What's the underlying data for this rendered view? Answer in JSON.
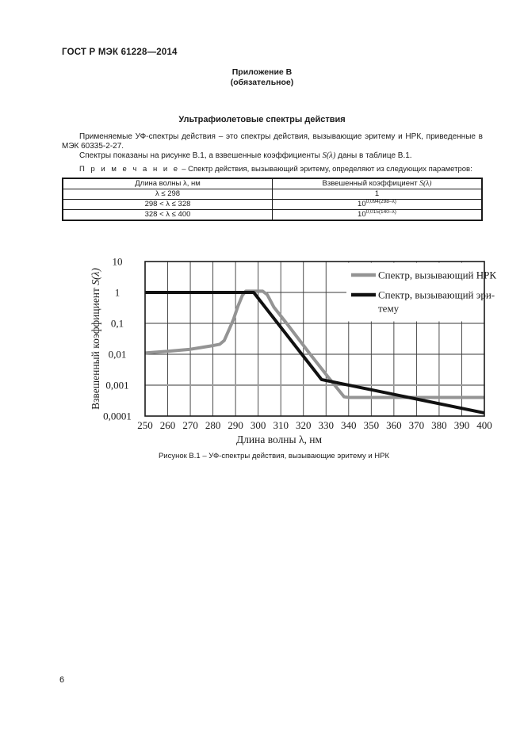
{
  "page": {
    "header": "ГОСТ Р МЭК 61228—2014",
    "annex_title": "Приложение В",
    "annex_subtitle": "(обязательное)",
    "section_title": "Ультрафиолетовые спектры действия",
    "paragraph_1": "Применяемые УФ-спектры действия – это спектры действия, вызывающие эритему и НРК, приведенные в МЭК 60335-2-27.",
    "paragraph_2": {
      "pre": "Спектры показаны на рисунке В.1, а взвешенные коэффициенты ",
      "math": "S(λ)",
      "post": " даны в таблице В.1."
    },
    "note": {
      "label": "П р и м е ч а н и е",
      "text": " – Спектр действия, вызывающий эритему, определяют из следующих параметров:"
    },
    "figure_caption": "Рисунок В.1 – УФ-спектры действия, вызывающие эритему и НРК",
    "page_number": "6"
  },
  "table": {
    "col1": "Длина волны λ, нм",
    "col2_pre": "Взвешенный коэффициент ",
    "col2_math": "S(λ)",
    "rows": [
      {
        "wavelength": "λ ≤ 298",
        "base": "1",
        "sup": ""
      },
      {
        "wavelength": "298 < λ ≤ 328",
        "base": "10",
        "sup": "0,094(298–λ)"
      },
      {
        "wavelength": "328 < λ ≤ 400",
        "base": "10",
        "sup": "0,015(140–λ)"
      }
    ]
  },
  "chart_data": {
    "type": "line",
    "title": "",
    "xlabel": "Длина волны λ, нм",
    "ylabel_pre": "Взвешенный коэффициент ",
    "ylabel_math": "S(λ)",
    "x_ticks": [
      250,
      260,
      270,
      280,
      290,
      300,
      310,
      320,
      330,
      340,
      350,
      360,
      370,
      380,
      390,
      400
    ],
    "xlim": [
      250,
      400
    ],
    "y_scale": "log",
    "ylim": [
      0.0001,
      10
    ],
    "y_tick_labels": [
      "10",
      "1",
      "0,1",
      "0,01",
      "0,001",
      "0,0001"
    ],
    "y_tick_values": [
      10,
      1,
      0.1,
      0.01,
      0.001,
      0.0001
    ],
    "grid": "on",
    "frame_color": "#1a1a1a",
    "grid_color": "#3a3a3a",
    "highlight_gridline": {
      "value": 0.001,
      "color": "#9a9a9a",
      "width": 2
    },
    "legend": {
      "position": "top-right-inside",
      "entries": [
        {
          "name": "Спектр, вызывающий НРК",
          "color": "#949494",
          "lines": [
            "Спектр, вызывающий НРК"
          ]
        },
        {
          "name": "Спектр, вызывающий эритему",
          "color": "#111111",
          "lines": [
            "Спектр, вызывающий эри-",
            "тему"
          ]
        }
      ]
    },
    "series": [
      {
        "name": "Спектр, вызывающий НРК",
        "color": "#949494",
        "width": 4,
        "points": [
          [
            250,
            0.011
          ],
          [
            260,
            0.0125
          ],
          [
            270,
            0.0145
          ],
          [
            280,
            0.019
          ],
          [
            283,
            0.021
          ],
          [
            285,
            0.028
          ],
          [
            287,
            0.06
          ],
          [
            289,
            0.13
          ],
          [
            291,
            0.35
          ],
          [
            293,
            0.8
          ],
          [
            294.5,
            1.1
          ],
          [
            302,
            1.1
          ],
          [
            304,
            0.85
          ],
          [
            307,
            0.33
          ],
          [
            312.6,
            0.1
          ],
          [
            323,
            0.01
          ],
          [
            331,
            0.0018
          ],
          [
            338,
            0.00042
          ],
          [
            340,
            0.0004
          ],
          [
            400,
            0.0004
          ]
        ]
      },
      {
        "name": "Спектр, вызывающий эритему",
        "color": "#111111",
        "width": 4,
        "points": [
          [
            250,
            1
          ],
          [
            298,
            1
          ],
          [
            328,
            0.00152
          ],
          [
            400,
            0.000126
          ]
        ]
      }
    ]
  }
}
